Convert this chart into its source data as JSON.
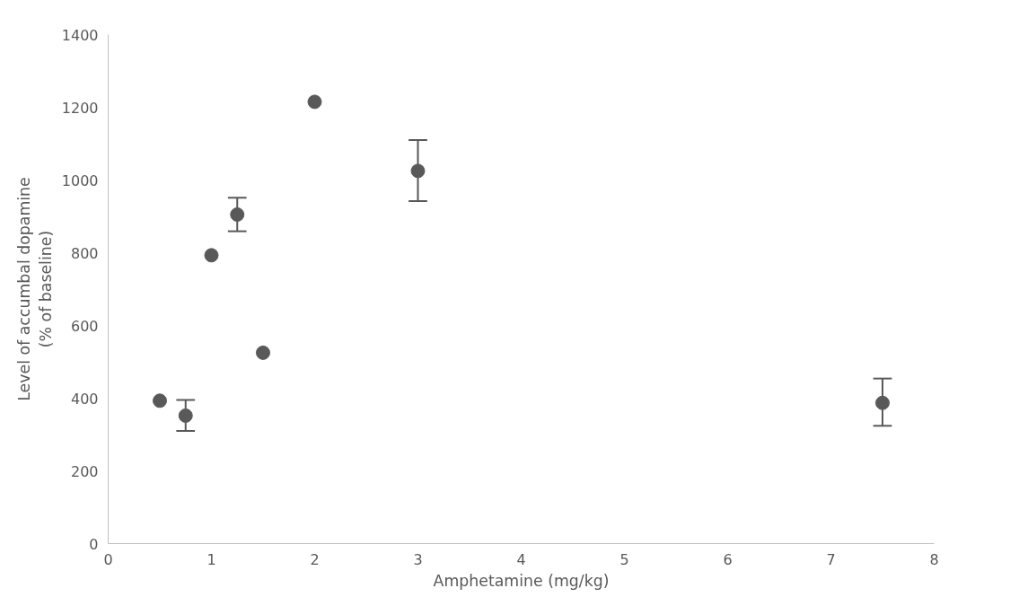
{
  "chart_data": {
    "type": "scatter",
    "xlabel": "Amphetamine (mg/kg)",
    "ylabel": "Level of accumbal dopamine\n(% of baseline)",
    "x": [
      0.5,
      0.75,
      1.0,
      1.25,
      1.5,
      2.0,
      3.0,
      7.5
    ],
    "series": [
      {
        "color": "#595959",
        "values": [
          393,
          352,
          793,
          905,
          525,
          1215,
          1025,
          387
        ],
        "errors": [
          null,
          [
            310,
            395
          ],
          null,
          [
            859,
            951
          ],
          null,
          null,
          [
            942,
            1110
          ],
          [
            324,
            454
          ]
        ]
      }
    ],
    "xlim": [
      0,
      8
    ],
    "xticks": [
      0,
      1,
      2,
      3,
      4,
      5,
      6,
      7,
      8
    ],
    "ylim": [
      0,
      1400
    ],
    "yticks": [
      0,
      200,
      400,
      600,
      800,
      1000,
      1200,
      1400
    ],
    "grid": false,
    "marker": "circle"
  }
}
